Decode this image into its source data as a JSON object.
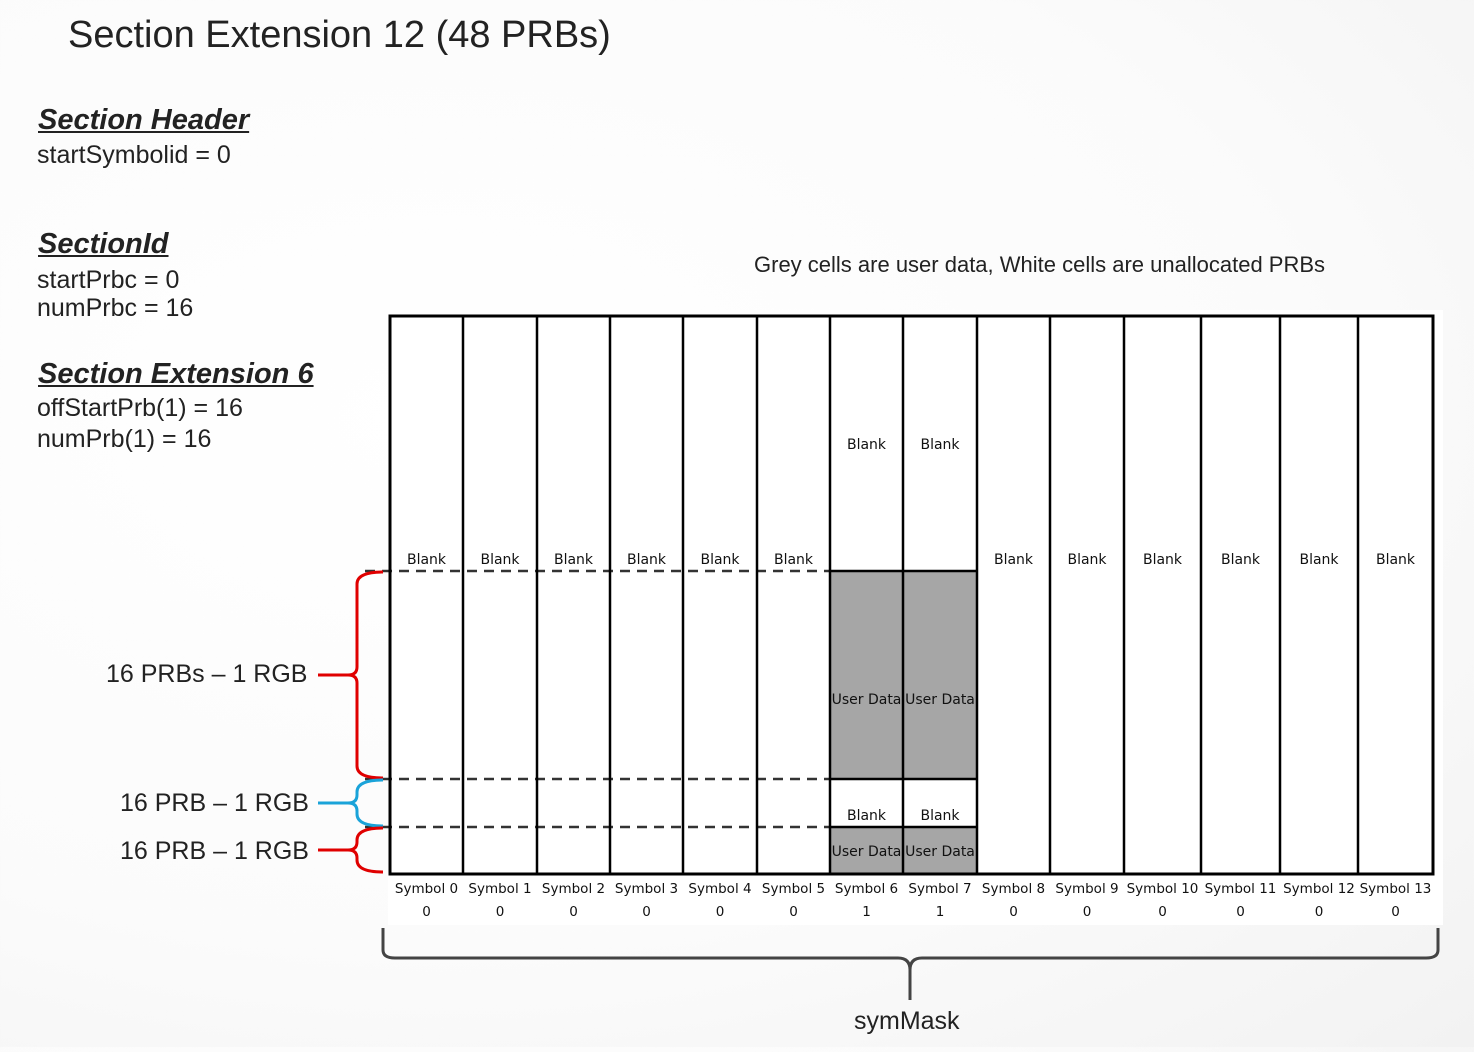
{
  "title": "Section Extension 12 (48 PRBs)",
  "section_header": {
    "heading": "Section Header",
    "lines": [
      "startSymbolid = 0"
    ]
  },
  "section_id": {
    "heading": "SectionId",
    "lines": [
      "startPrbc = 0",
      "numPrbc = 16"
    ]
  },
  "section_ext6": {
    "heading": "Section Extension 6",
    "lines": [
      "offStartPrb(1) = 16",
      "numPrb(1) = 16"
    ]
  },
  "caption": "Grey cells are user data, White cells are unallocated PRBs",
  "braces": [
    {
      "label": "16 PRBs – 1 RGB",
      "color": "#e00000"
    },
    {
      "label": "16 PRB – 1 RGB",
      "color": "#1aa3d9"
    },
    {
      "label": "16 PRB – 1 RGB",
      "color": "#e00000"
    }
  ],
  "cell_labels": {
    "blank": "Blank",
    "user_data": "User Data"
  },
  "colors": {
    "user_data": "#a6a6a6",
    "blank": "#ffffff"
  },
  "symbols": [
    {
      "name": "Symbol 0",
      "mask": "0",
      "allocated": false
    },
    {
      "name": "Symbol 1",
      "mask": "0",
      "allocated": false
    },
    {
      "name": "Symbol 2",
      "mask": "0",
      "allocated": false
    },
    {
      "name": "Symbol 3",
      "mask": "0",
      "allocated": false
    },
    {
      "name": "Symbol 4",
      "mask": "0",
      "allocated": false
    },
    {
      "name": "Symbol 5",
      "mask": "0",
      "allocated": false
    },
    {
      "name": "Symbol 6",
      "mask": "1",
      "allocated": true
    },
    {
      "name": "Symbol 7",
      "mask": "1",
      "allocated": true
    },
    {
      "name": "Symbol 8",
      "mask": "0",
      "allocated": false
    },
    {
      "name": "Symbol 9",
      "mask": "0",
      "allocated": false
    },
    {
      "name": "Symbol 10",
      "mask": "0",
      "allocated": false
    },
    {
      "name": "Symbol 11",
      "mask": "0",
      "allocated": false
    },
    {
      "name": "Symbol 12",
      "mask": "0",
      "allocated": false
    },
    {
      "name": "Symbol 13",
      "mask": "0",
      "allocated": false
    }
  ],
  "symmask_label": "symMask"
}
